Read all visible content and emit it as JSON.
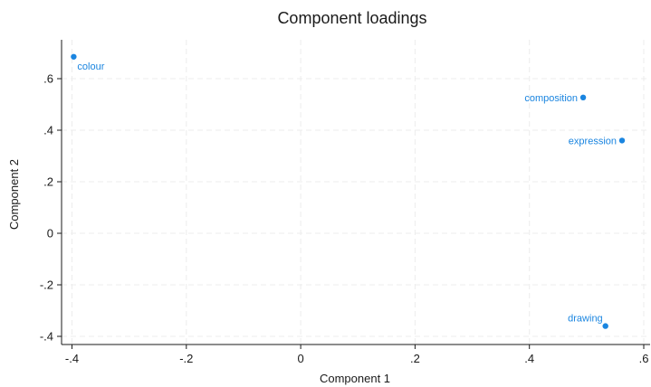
{
  "chart_data": {
    "type": "scatter",
    "title": "Component loadings",
    "xlabel": "Component 1",
    "ylabel": "Component 2",
    "xlim": [
      -0.4,
      0.6
    ],
    "ylim": [
      -0.4,
      0.7
    ],
    "x_ticks": [
      -0.4,
      -0.2,
      0,
      0.2,
      0.4,
      0.6
    ],
    "x_tick_labels": [
      "-.4",
      "-.2",
      "0",
      ".2",
      ".4",
      ".6"
    ],
    "y_ticks": [
      -0.4,
      -0.2,
      0,
      0.2,
      0.4,
      0.6
    ],
    "y_tick_labels": [
      "-.4",
      "-.2",
      "0",
      ".2",
      ".4",
      ".6"
    ],
    "grid": true,
    "marker_color": "#1a85e0",
    "points": [
      {
        "label": "colour",
        "x": -0.397,
        "y": 0.685,
        "label_pos": "below-right"
      },
      {
        "label": "composition",
        "x": 0.494,
        "y": 0.527,
        "label_pos": "left"
      },
      {
        "label": "expression",
        "x": 0.562,
        "y": 0.36,
        "label_pos": "left"
      },
      {
        "label": "drawing",
        "x": 0.533,
        "y": -0.36,
        "label_pos": "above-left"
      }
    ]
  }
}
